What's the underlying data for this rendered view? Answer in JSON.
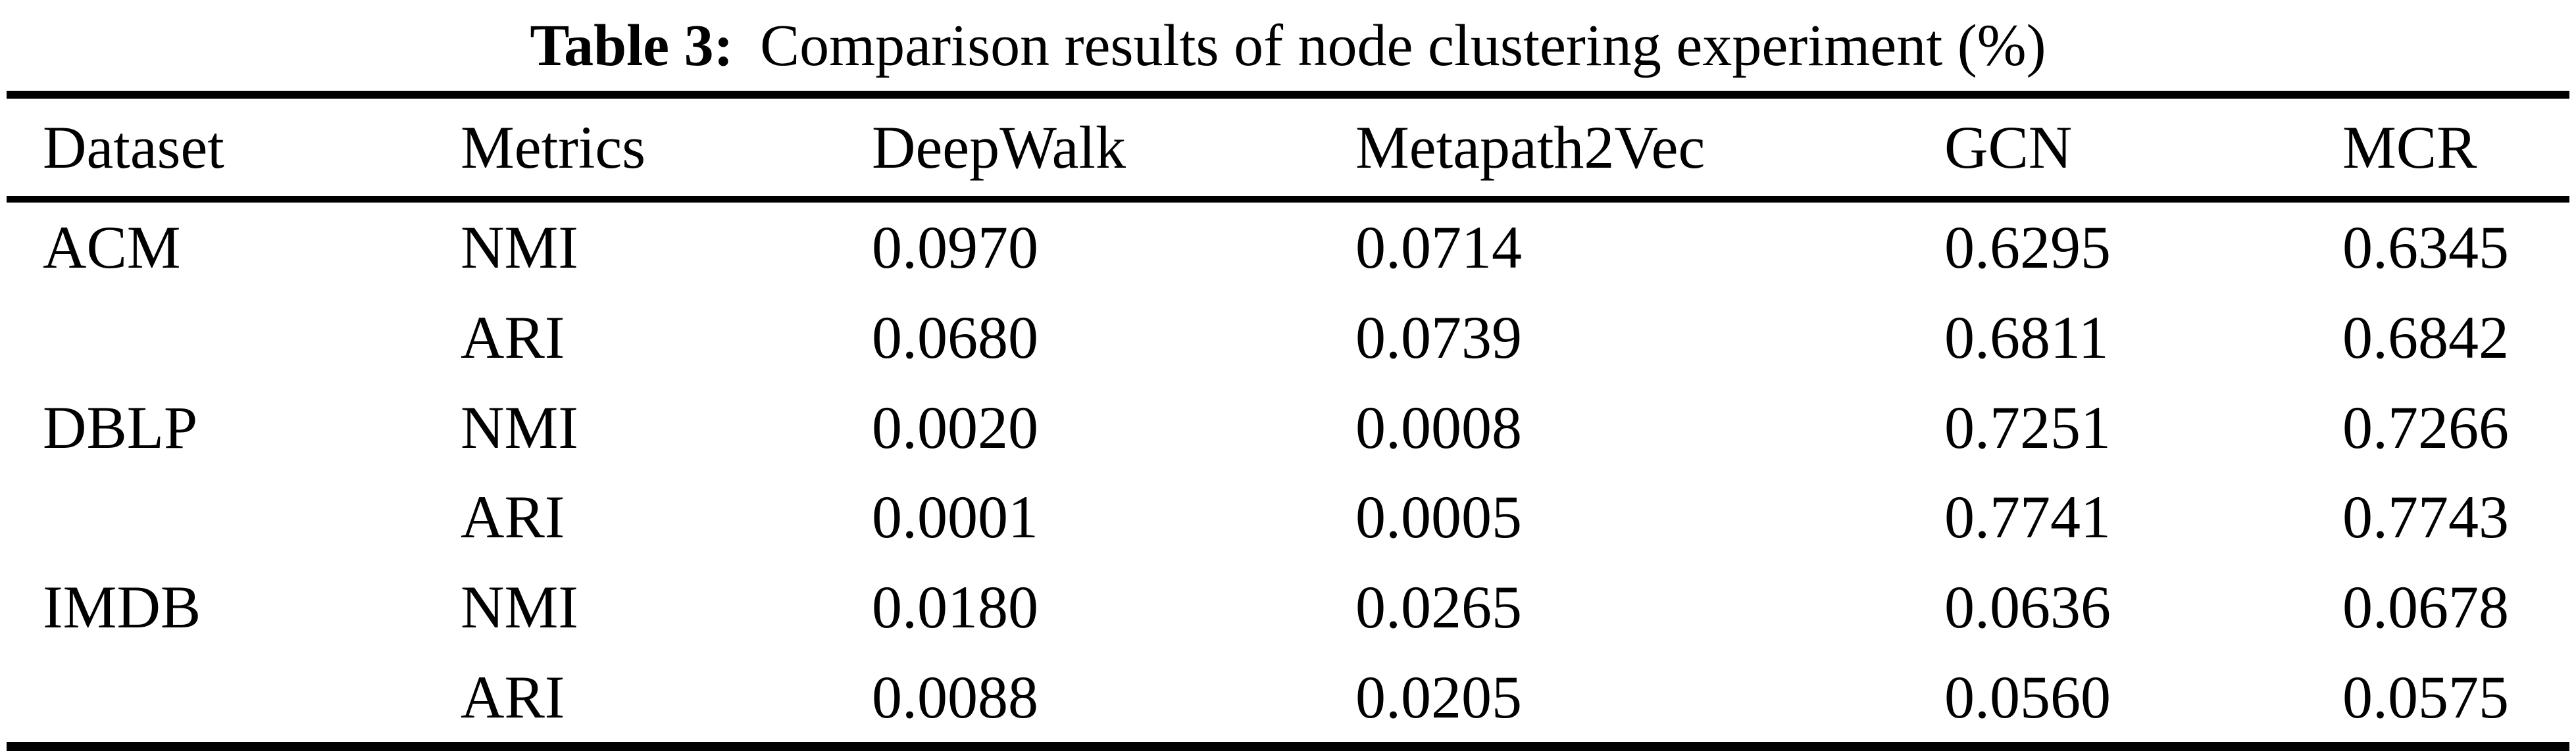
{
  "caption": {
    "label": "Table 3:",
    "text": "Comparison results of node clustering experiment (%)"
  },
  "table": {
    "columns": [
      "Dataset",
      "Metrics",
      "DeepWalk",
      "Metapath2Vec",
      "GCN",
      "MCR"
    ],
    "rows": [
      {
        "dataset": "ACM",
        "metric": "NMI",
        "values": [
          "0.0970",
          "0.0714",
          "0.6295",
          "0.6345"
        ]
      },
      {
        "dataset": "",
        "metric": "ARI",
        "values": [
          "0.0680",
          "0.0739",
          "0.6811",
          "0.6842"
        ]
      },
      {
        "dataset": "DBLP",
        "metric": "NMI",
        "values": [
          "0.0020",
          "0.0008",
          "0.7251",
          "0.7266"
        ]
      },
      {
        "dataset": "",
        "metric": "ARI",
        "values": [
          "0.0001",
          "0.0005",
          "0.7741",
          "0.7743"
        ]
      },
      {
        "dataset": "IMDB",
        "metric": "NMI",
        "values": [
          "0.0180",
          "0.0265",
          "0.0636",
          "0.0678"
        ]
      },
      {
        "dataset": "",
        "metric": "ARI",
        "values": [
          "0.0088",
          "0.0205",
          "0.0560",
          "0.0575"
        ]
      }
    ]
  },
  "colors": {
    "text": "#000000",
    "background": "#ffffff",
    "rule": "#000000"
  }
}
